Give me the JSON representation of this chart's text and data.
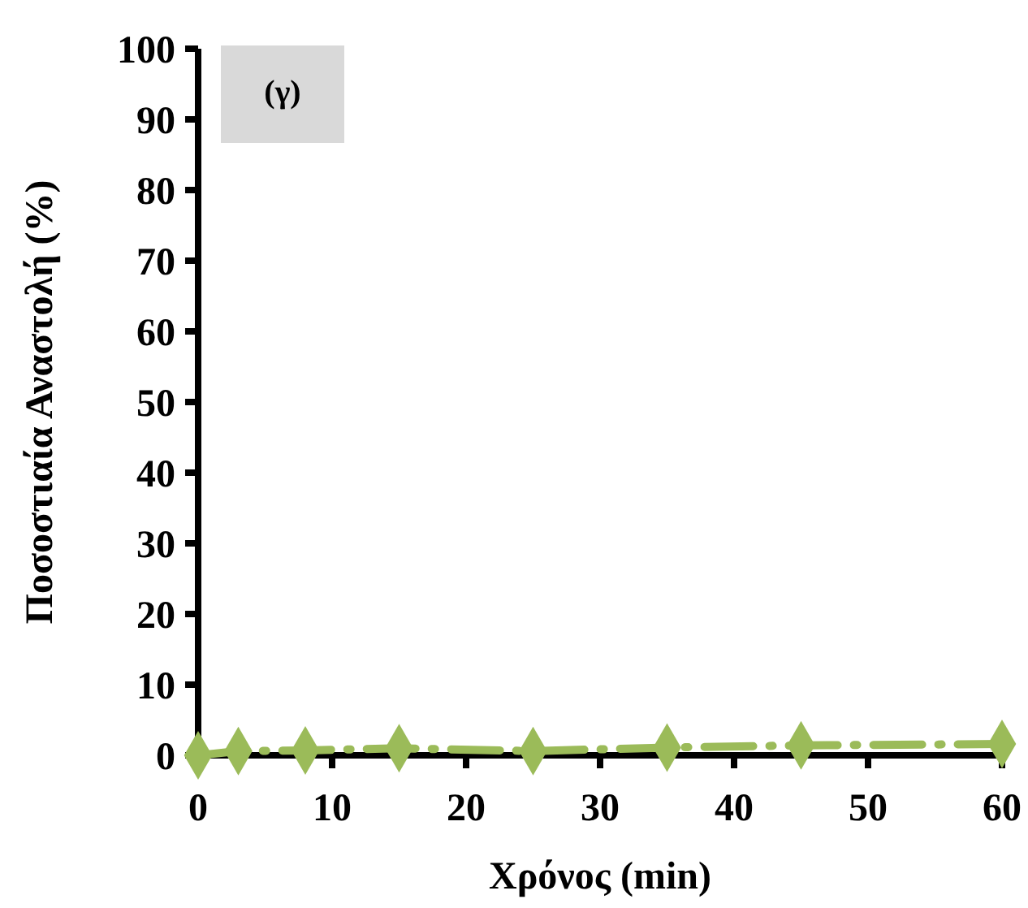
{
  "chart_data": {
    "type": "line",
    "xlabel": "Χρόνος (min)",
    "ylabel": "Ποσοστιαία Αναστολή (%)",
    "x": [
      0,
      3,
      8,
      15,
      25,
      35,
      45,
      60
    ],
    "series": [
      {
        "color": "#9bbb59",
        "values": [
          0,
          0.6,
          0.7,
          1,
          0.6,
          1.1,
          1.4,
          1.6
        ]
      }
    ],
    "xlim": [
      0,
      60
    ],
    "xticks": [
      0,
      10,
      20,
      30,
      40,
      50,
      60
    ],
    "ylim": [
      0,
      100
    ],
    "yticks": [
      0,
      10,
      20,
      30,
      40,
      50,
      60,
      70,
      80,
      90,
      100
    ],
    "marker": "diamond",
    "line_style": "dashdot",
    "grid": false,
    "annotations": [
      "(γ)"
    ]
  }
}
